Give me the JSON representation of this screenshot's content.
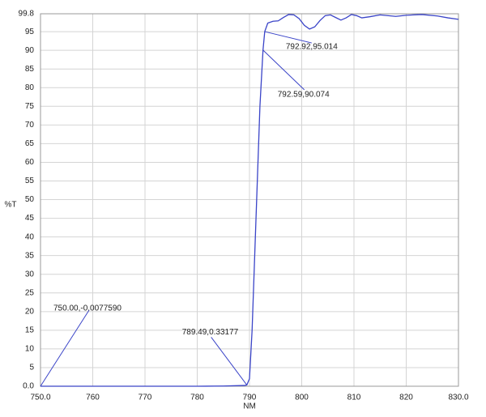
{
  "chart_data": {
    "type": "line",
    "xlabel": "NM",
    "ylabel": "%T",
    "xlim": [
      750,
      830
    ],
    "ylim": [
      0,
      99.8
    ],
    "xticks": [
      {
        "value": 750,
        "label": "750.0"
      },
      760,
      770,
      780,
      790,
      800,
      810,
      820,
      {
        "value": 830,
        "label": "830.0"
      }
    ],
    "yticks": [
      {
        "value": 0,
        "label": "0.0"
      },
      5,
      10,
      15,
      20,
      25,
      30,
      35,
      40,
      45,
      50,
      55,
      60,
      65,
      70,
      75,
      80,
      85,
      90,
      95,
      99.8
    ],
    "grid": true,
    "series": [
      {
        "name": "%T",
        "color": "#3a44c8",
        "x": [
          750,
          760,
          770,
          780,
          785,
          789,
          789.49,
          790,
          790.5,
          791,
          791.5,
          792,
          792.59,
          792.92,
          793.5,
          794.5,
          795.5,
          796.5,
          797.5,
          798.5,
          799.5,
          800.5,
          801.5,
          802.5,
          803.5,
          804.5,
          805.5,
          806.5,
          807.5,
          808.5,
          809.5,
          810.5,
          811.5,
          813,
          815,
          818,
          820,
          823,
          826,
          828,
          830
        ],
        "values": [
          -0.007759,
          0,
          0,
          0,
          0.05,
          0.2,
          0.33177,
          2,
          15,
          35,
          55,
          75,
          90.074,
          95.014,
          97.3,
          97.8,
          97.9,
          98.8,
          99.6,
          99.5,
          98.5,
          96.7,
          95.7,
          96.3,
          98,
          99.3,
          99.5,
          98.8,
          98.1,
          98.7,
          99.6,
          99.3,
          98.7,
          99.0,
          99.5,
          99.1,
          99.4,
          99.6,
          99.2,
          98.7,
          98.3
        ]
      }
    ],
    "annotations": [
      {
        "text": "750.00,-0.0077590",
        "x": 750,
        "y": -0.007759
      },
      {
        "text": "789.49,0.33177",
        "x": 789.49,
        "y": 0.33177
      },
      {
        "text": "792.59,90.074",
        "x": 792.59,
        "y": 90.074
      },
      {
        "text": "792.92,95.014",
        "x": 792.92,
        "y": 95.014
      }
    ]
  }
}
